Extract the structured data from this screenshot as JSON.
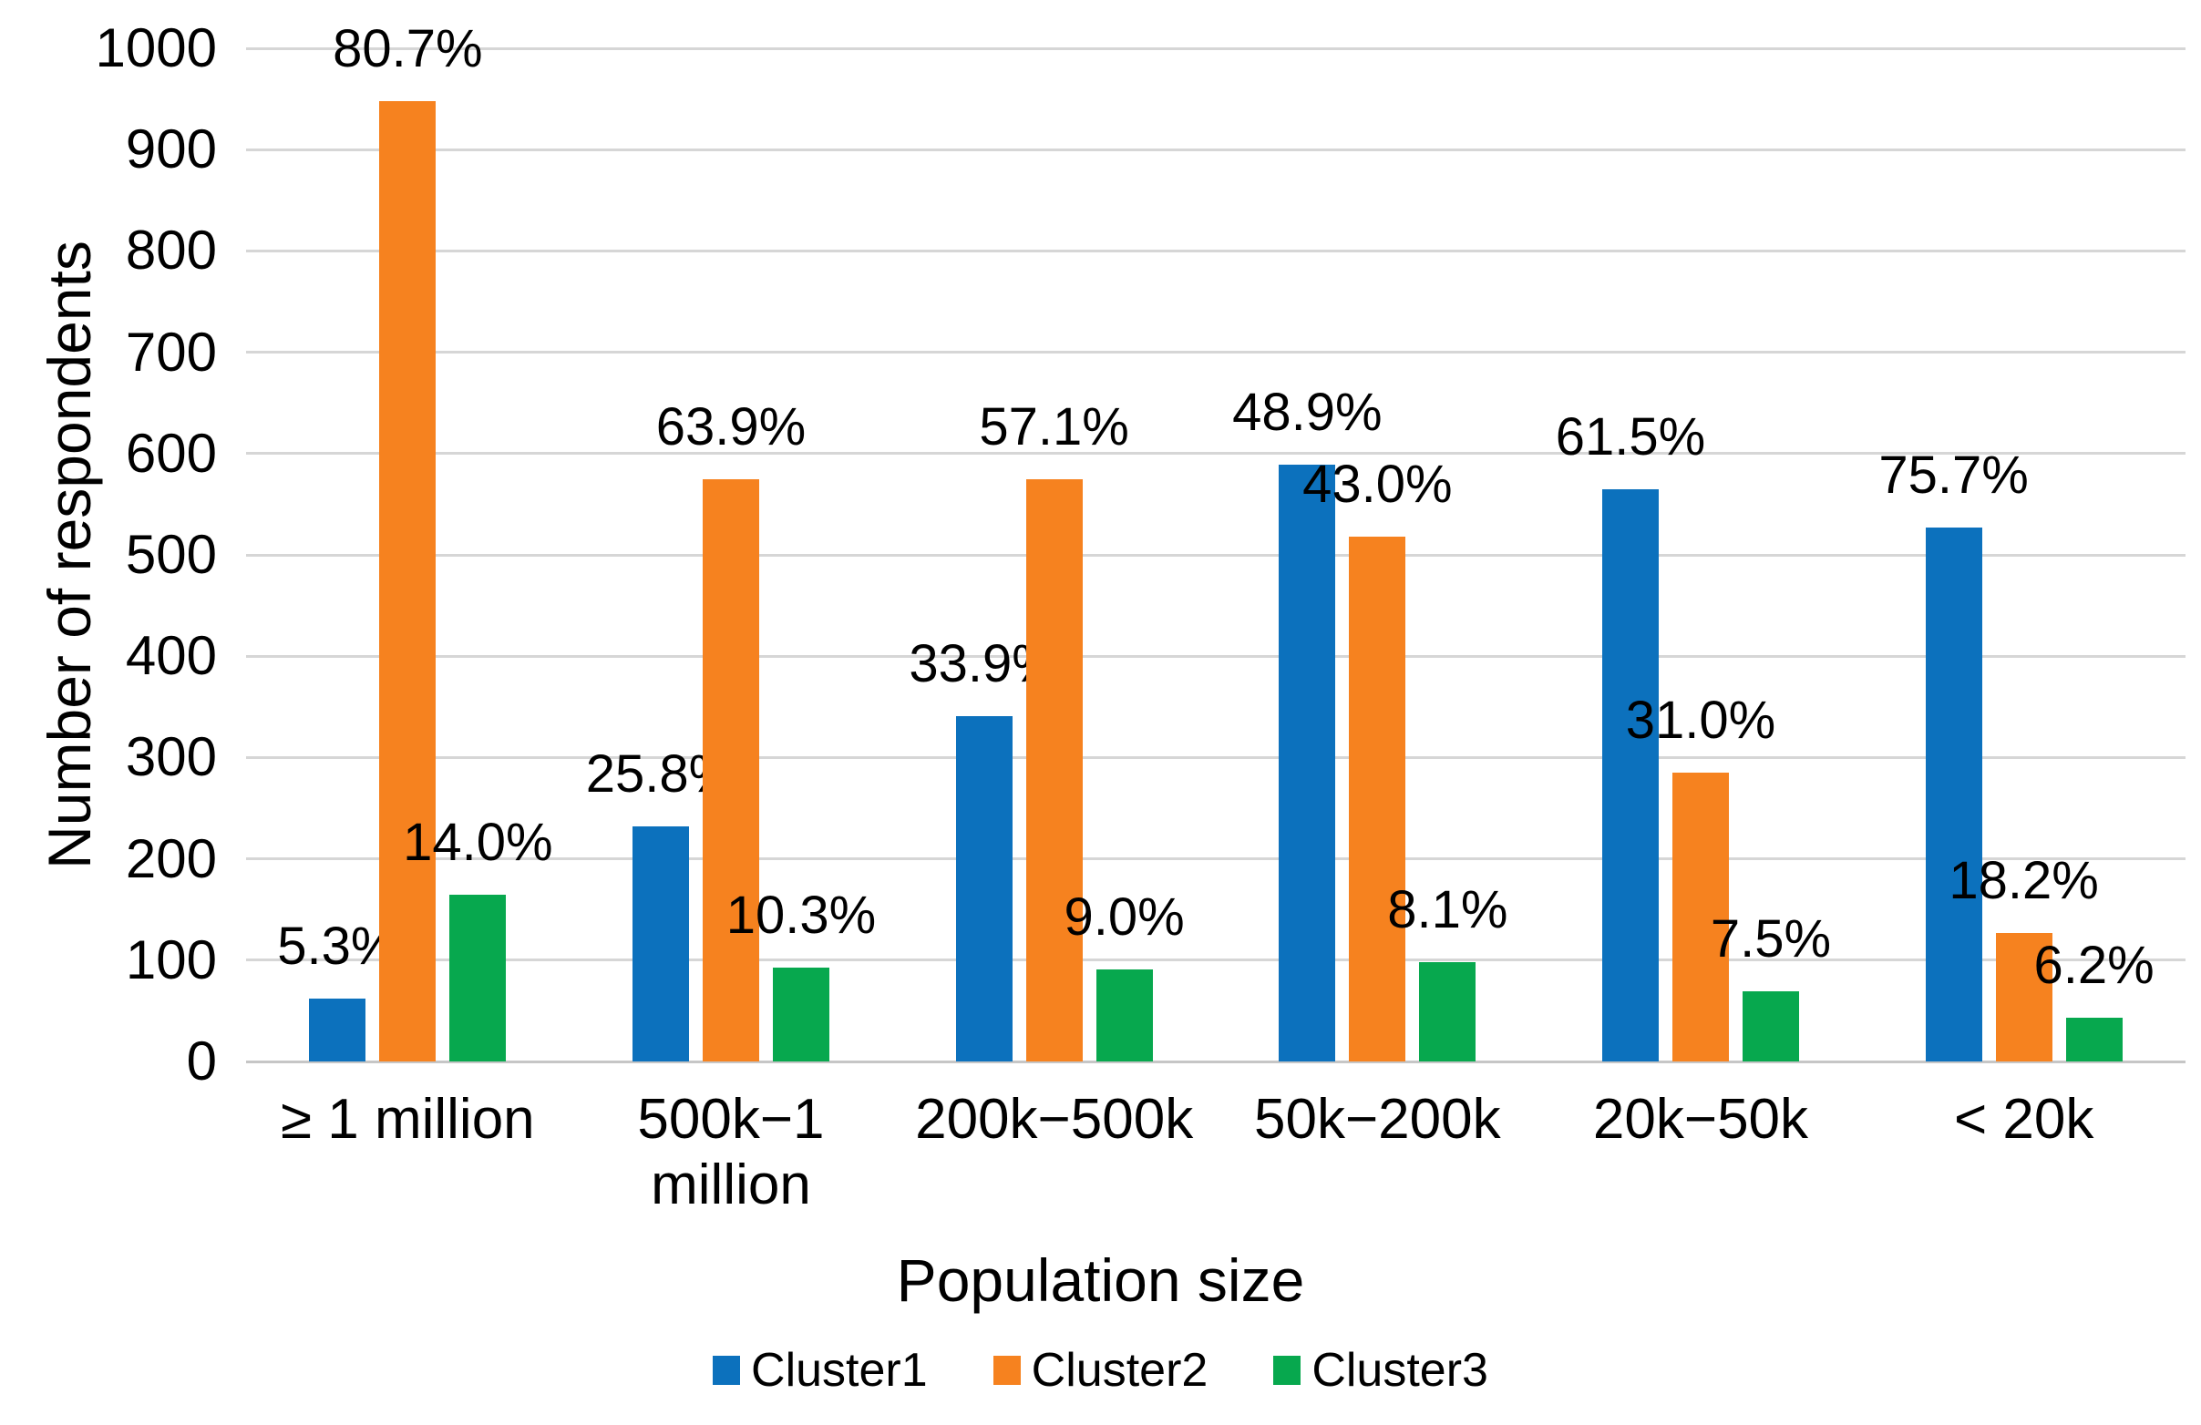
{
  "chart_data": {
    "type": "bar",
    "title": "",
    "xlabel": "Population size",
    "ylabel": "Number of respondents",
    "ylim": [
      0,
      1000
    ],
    "yticks": [
      0,
      100,
      200,
      300,
      400,
      500,
      600,
      700,
      800,
      900,
      1000
    ],
    "grid": true,
    "legend_position": "bottom",
    "categories": [
      "≥ 1 million",
      "500k−1 million",
      "200k−500k",
      "50k−200k",
      "20k−50k",
      "< 20k"
    ],
    "series": [
      {
        "name": "Cluster1",
        "color": "#0c71bd",
        "values": [
          62,
          232,
          341,
          589,
          565,
          527
        ],
        "labels": [
          "5.3%",
          "25.8%",
          "33.9%",
          "48.9%",
          "61.5%",
          "75.7%"
        ]
      },
      {
        "name": "Cluster2",
        "color": "#f6821f",
        "values": [
          948,
          575,
          575,
          518,
          285,
          127
        ],
        "labels": [
          "80.7%",
          "63.9%",
          "57.1%",
          "43.0%",
          "31.0%",
          "18.2%"
        ]
      },
      {
        "name": "Cluster3",
        "color": "#07a84e",
        "values": [
          165,
          93,
          91,
          98,
          69,
          43
        ],
        "labels": [
          "14.0%",
          "10.3%",
          "9.0%",
          "8.1%",
          "7.5%",
          "6.2%"
        ]
      }
    ]
  }
}
